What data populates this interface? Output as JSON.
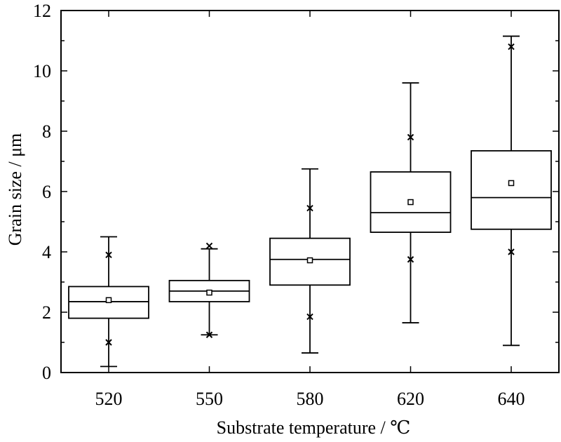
{
  "chart_data": {
    "type": "box",
    "xlabel": "Substrate temperature / ℃",
    "ylabel": "Grain size / μm",
    "ylim": [
      0,
      12
    ],
    "yticks": [
      0,
      2,
      4,
      6,
      8,
      10,
      12
    ],
    "grid": false,
    "categories": [
      "520",
      "550",
      "580",
      "620",
      "640"
    ],
    "boxes": [
      {
        "category": "520",
        "whisker_low": 0.2,
        "q1": 1.8,
        "median": 2.35,
        "q3": 2.85,
        "whisker_high": 4.5,
        "mean": 2.4,
        "marker_low": 1.0,
        "marker_high": 3.9
      },
      {
        "category": "550",
        "whisker_low": 1.25,
        "q1": 2.35,
        "median": 2.7,
        "q3": 3.05,
        "whisker_high": 4.1,
        "mean": 2.65,
        "marker_low": 1.25,
        "marker_high": 4.2
      },
      {
        "category": "580",
        "whisker_low": 0.65,
        "q1": 2.9,
        "median": 3.75,
        "q3": 4.45,
        "whisker_high": 6.75,
        "mean": 3.72,
        "marker_low": 1.85,
        "marker_high": 5.45
      },
      {
        "category": "620",
        "whisker_low": 1.65,
        "q1": 4.65,
        "median": 5.3,
        "q3": 6.65,
        "whisker_high": 9.6,
        "mean": 5.65,
        "marker_low": 3.75,
        "marker_high": 7.8
      },
      {
        "category": "640",
        "whisker_low": 0.9,
        "q1": 4.75,
        "median": 5.8,
        "q3": 7.35,
        "whisker_high": 11.15,
        "mean": 6.28,
        "marker_low": 4.0,
        "marker_high": 10.8
      }
    ]
  }
}
